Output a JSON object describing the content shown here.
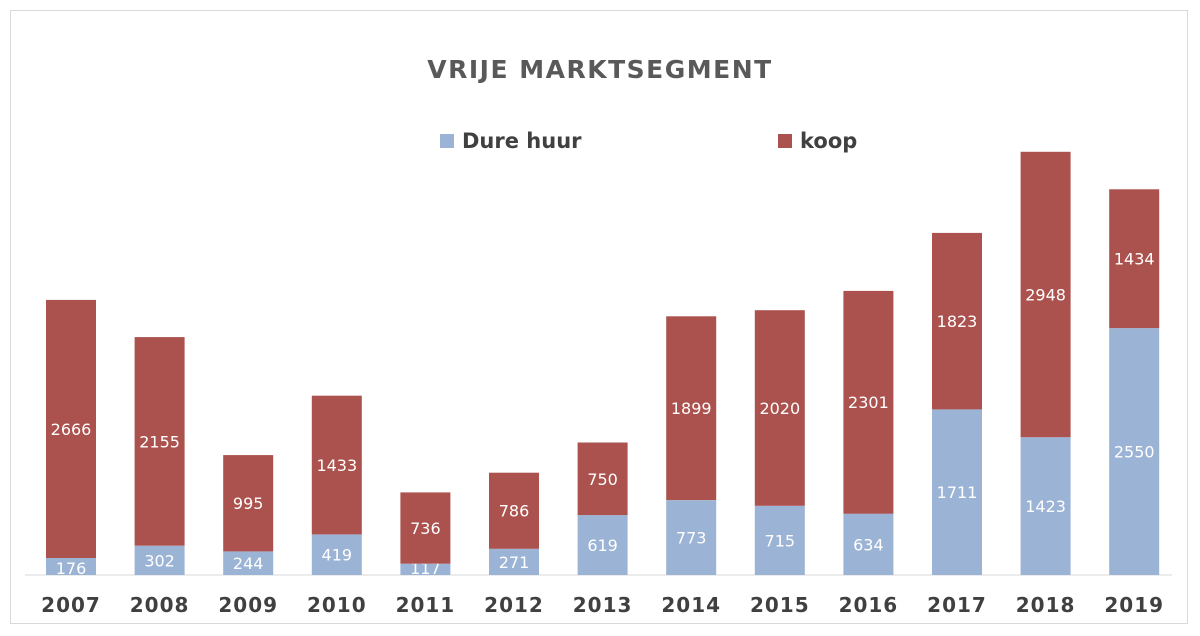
{
  "chart_data": {
    "type": "bar",
    "stacked": true,
    "title": "VRIJE MARKTSEGMENT",
    "xlabel": "",
    "ylabel": "",
    "categories": [
      "2007",
      "2008",
      "2009",
      "2010",
      "2011",
      "2012",
      "2013",
      "2014",
      "2015",
      "2016",
      "2017",
      "2018",
      "2019"
    ],
    "series": [
      {
        "name": "Dure  huur",
        "color": "#9bb3d5",
        "values": [
          176,
          302,
          244,
          419,
          117,
          271,
          619,
          773,
          715,
          634,
          1711,
          1423,
          2550
        ]
      },
      {
        "name": "koop",
        "color": "#ac524e",
        "values": [
          2666,
          2155,
          995,
          1433,
          736,
          786,
          750,
          1899,
          2020,
          2301,
          1823,
          2948,
          1434
        ]
      }
    ],
    "ylim": [
      0,
      4700
    ],
    "grid": false,
    "legend_position": "top-center"
  }
}
